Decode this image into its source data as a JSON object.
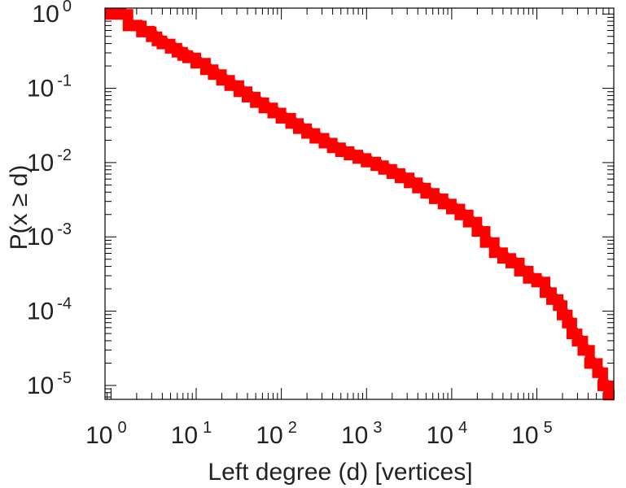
{
  "chart_data": {
    "type": "line",
    "xlabel": "Left degree (d) [vertices]",
    "ylabel": "P(x ≥ d)",
    "xscale": "log",
    "yscale": "log",
    "xlim": [
      0.85,
      800000
    ],
    "ylim": [
      6.5e-06,
      1.2
    ],
    "grid": false,
    "x_ticks": [
      {
        "base": "10",
        "exp": "0",
        "value": 1
      },
      {
        "base": "10",
        "exp": "1",
        "value": 10
      },
      {
        "base": "10",
        "exp": "2",
        "value": 100
      },
      {
        "base": "10",
        "exp": "3",
        "value": 1000
      },
      {
        "base": "10",
        "exp": "4",
        "value": 10000
      },
      {
        "base": "10",
        "exp": "5",
        "value": 100000
      }
    ],
    "y_ticks": [
      {
        "base": "10",
        "exp": "0",
        "value": 1
      },
      {
        "base": "10",
        "exp": "-1",
        "value": 0.1
      },
      {
        "base": "10",
        "exp": "-2",
        "value": 0.01
      },
      {
        "base": "10",
        "exp": "-3",
        "value": 0.001
      },
      {
        "base": "10",
        "exp": "-4",
        "value": 0.0001
      },
      {
        "base": "10",
        "exp": "-5",
        "value": 1e-05
      }
    ],
    "series": [
      {
        "color": "#ff0000",
        "marker": "square",
        "points": [
          [
            1,
            1.0
          ],
          [
            1.3,
            1.0
          ],
          [
            1.6,
            0.7
          ],
          [
            2.0,
            0.7
          ],
          [
            2.3,
            0.58
          ],
          [
            2.8,
            0.58
          ],
          [
            3,
            0.5
          ],
          [
            3.5,
            0.44
          ],
          [
            4,
            0.4
          ],
          [
            5,
            0.35
          ],
          [
            6,
            0.31
          ],
          [
            7,
            0.28
          ],
          [
            8,
            0.26
          ],
          [
            10,
            0.22
          ],
          [
            13,
            0.18
          ],
          [
            16,
            0.155
          ],
          [
            20,
            0.13
          ],
          [
            25,
            0.11
          ],
          [
            32,
            0.091
          ],
          [
            40,
            0.077
          ],
          [
            50,
            0.065
          ],
          [
            63,
            0.055
          ],
          [
            80,
            0.047
          ],
          [
            100,
            0.04
          ],
          [
            130,
            0.034
          ],
          [
            160,
            0.029
          ],
          [
            200,
            0.025
          ],
          [
            250,
            0.0215
          ],
          [
            320,
            0.0185
          ],
          [
            400,
            0.016
          ],
          [
            500,
            0.0142
          ],
          [
            630,
            0.0128
          ],
          [
            800,
            0.0115
          ],
          [
            1000,
            0.0103
          ],
          [
            1300,
            0.0092
          ],
          [
            1600,
            0.0082
          ],
          [
            2000,
            0.0072
          ],
          [
            2500,
            0.0063
          ],
          [
            3200,
            0.0054
          ],
          [
            4000,
            0.0046
          ],
          [
            5000,
            0.0039
          ],
          [
            6300,
            0.0033
          ],
          [
            8000,
            0.0028
          ],
          [
            10000,
            0.0024
          ],
          [
            12600,
            0.002
          ],
          [
            15800,
            0.0016
          ],
          [
            20000,
            0.0012
          ],
          [
            25000,
            0.00085
          ],
          [
            32000,
            0.00062
          ],
          [
            40000,
            0.00052
          ],
          [
            50000,
            0.00045
          ],
          [
            63000,
            0.00035
          ],
          [
            80000,
            0.00028
          ],
          [
            100000,
            0.00025
          ],
          [
            126000,
            0.00018
          ],
          [
            150000,
            0.000145
          ],
          [
            180000,
            0.00012
          ],
          [
            200000,
            9e-05
          ],
          [
            230000,
            7e-05
          ],
          [
            260000,
            5e-05
          ],
          [
            300000,
            4e-05
          ],
          [
            350000,
            3e-05
          ],
          [
            420000,
            2e-05
          ],
          [
            520000,
            1.5e-05
          ],
          [
            600000,
            1e-05
          ],
          [
            700000,
            7.5e-06
          ]
        ]
      }
    ]
  }
}
